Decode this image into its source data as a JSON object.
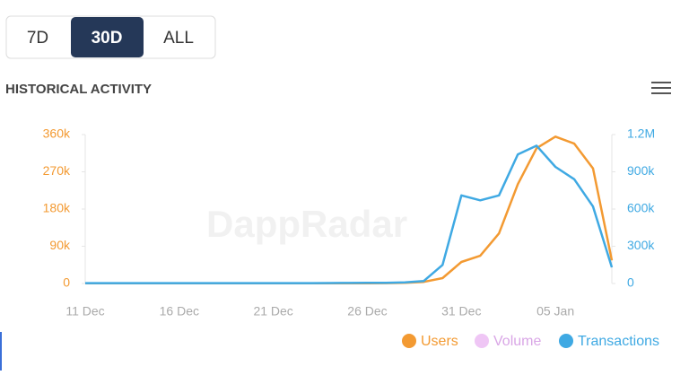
{
  "tabs": [
    "7D",
    "30D",
    "ALL"
  ],
  "active_tab": 1,
  "section_title": "HISTORICAL ACTIVITY",
  "watermark": "DappRadar",
  "chart_data": {
    "type": "line",
    "categories": [
      "11 Dec",
      null,
      null,
      null,
      null,
      "16 Dec",
      null,
      null,
      null,
      null,
      "21 Dec",
      null,
      null,
      null,
      null,
      "26 Dec",
      null,
      null,
      null,
      null,
      "31 Dec",
      null,
      null,
      null,
      null,
      "05 Jan",
      null,
      null,
      null
    ],
    "series": [
      {
        "name": "Users",
        "color": "#f39a32",
        "values": [
          500,
          500,
          500,
          500,
          500,
          500,
          500,
          500,
          500,
          500,
          500,
          500,
          500,
          600,
          600,
          700,
          800,
          1500,
          4000,
          13000,
          52000,
          67000,
          121000,
          240000,
          327000,
          355000,
          338000,
          278000,
          56000
        ]
      },
      {
        "name": "Volume",
        "color": "#efc6f5",
        "hidden": true
      },
      {
        "name": "Transactions",
        "color": "#3fa9e3",
        "axis": "y2",
        "values": [
          3000,
          3000,
          3000,
          3000,
          3000,
          3000,
          3000,
          3000,
          3000,
          3000,
          3000,
          3000,
          3000,
          3500,
          4000,
          5000,
          6000,
          9000,
          20000,
          150000,
          710000,
          670000,
          710000,
          1040000,
          1110000,
          940000,
          840000,
          620000,
          130000
        ]
      }
    ],
    "ylim": [
      0,
      360000
    ],
    "yticks": [
      {
        "value": 0,
        "label": "0"
      },
      {
        "value": 90000,
        "label": "90k"
      },
      {
        "value": 180000,
        "label": "180k"
      },
      {
        "value": 270000,
        "label": "270k"
      },
      {
        "value": 360000,
        "label": "360k"
      }
    ],
    "y2lim": [
      0,
      1200000
    ],
    "y2ticks": [
      {
        "value": 0,
        "label": "0"
      },
      {
        "value": 300000,
        "label": "300k"
      },
      {
        "value": 600000,
        "label": "600k"
      },
      {
        "value": 900000,
        "label": "900k"
      },
      {
        "value": 1200000,
        "label": "1.2M"
      }
    ],
    "legend": "bottom-right"
  }
}
